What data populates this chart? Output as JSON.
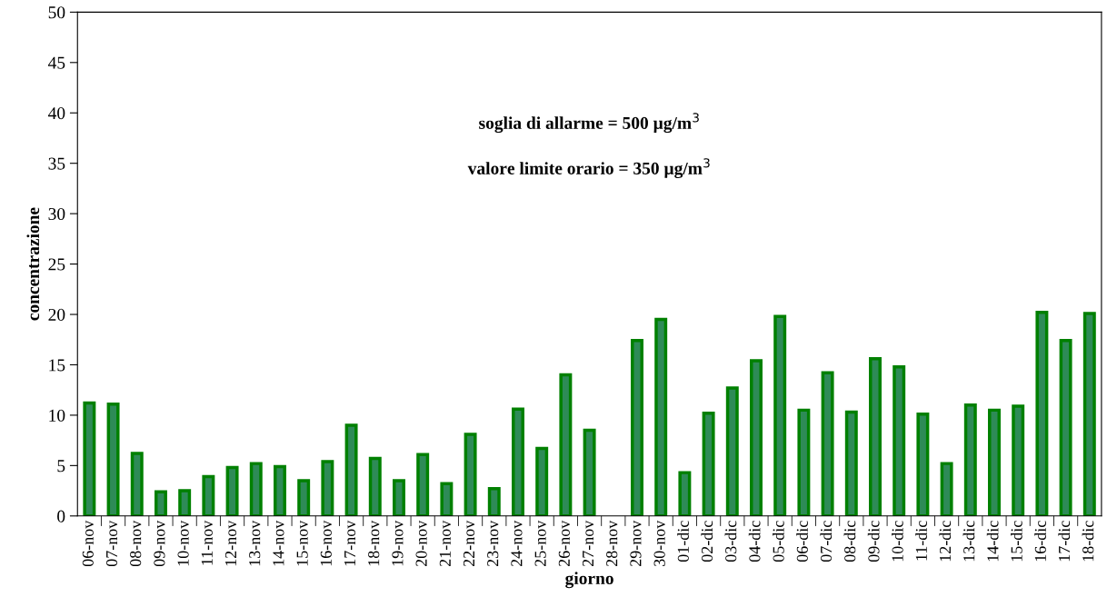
{
  "chart_data": {
    "type": "bar",
    "xlabel": "giorno",
    "ylabel": "concentrazione",
    "categories": [
      "06-nov",
      "07-nov",
      "08-nov",
      "09-nov",
      "10-nov",
      "11-nov",
      "12-nov",
      "13-nov",
      "14-nov",
      "15-nov",
      "16-nov",
      "17-nov",
      "18-nov",
      "19-nov",
      "20-nov",
      "21-nov",
      "22-nov",
      "23-nov",
      "24-nov",
      "25-nov",
      "26-nov",
      "27-nov",
      "28-nov",
      "29-nov",
      "30-nov",
      "01-dic",
      "02-dic",
      "03-dic",
      "04-dic",
      "05-dic",
      "06-dic",
      "07-dic",
      "08-dic",
      "09-dic",
      "10-dic",
      "11-dic",
      "12-dic",
      "13-dic",
      "14-dic",
      "15-dic",
      "16-dic",
      "17-dic",
      "18-dic"
    ],
    "values": [
      11.2,
      11.1,
      6.2,
      2.4,
      2.5,
      3.9,
      4.8,
      5.2,
      4.9,
      3.5,
      5.4,
      9.0,
      5.7,
      3.5,
      6.1,
      3.2,
      8.1,
      2.7,
      10.6,
      6.7,
      14.0,
      8.5,
      null,
      17.4,
      19.5,
      4.3,
      10.2,
      12.7,
      15.4,
      19.8,
      10.5,
      14.2,
      10.3,
      15.6,
      14.8,
      10.1,
      5.2,
      11.0,
      10.5,
      10.9,
      20.2,
      17.4,
      20.1
    ],
    "color": "#2e8b57",
    "ylim": [
      0,
      50
    ],
    "yticks": [
      0,
      5,
      10,
      15,
      20,
      25,
      30,
      35,
      40,
      45,
      50
    ],
    "grid": false,
    "legend": false,
    "annotations": [
      "soglia di allarme = 500 µg/m$^{3}$",
      "valore limite orario = 350 µg/m$^{3}$"
    ]
  }
}
